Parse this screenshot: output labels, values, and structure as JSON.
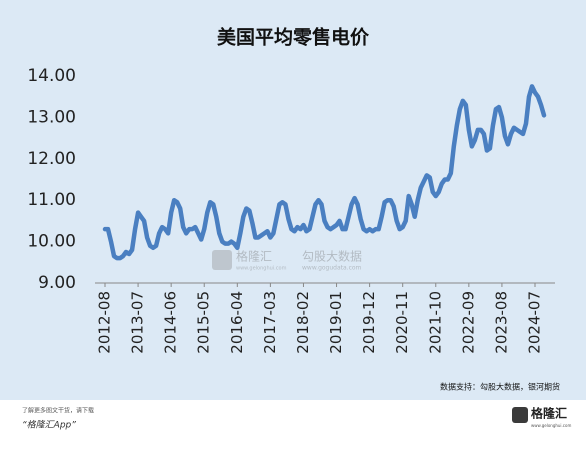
{
  "chart_data": {
    "type": "line",
    "title": "美国平均零售电价",
    "categories": [
      "2012-08",
      null,
      null,
      null,
      null,
      null,
      null,
      null,
      null,
      null,
      null,
      "2013-07",
      null,
      null,
      null,
      null,
      null,
      null,
      null,
      null,
      null,
      null,
      "2014-06",
      null,
      null,
      null,
      null,
      null,
      null,
      null,
      null,
      null,
      null,
      "2015-05",
      null,
      null,
      null,
      null,
      null,
      null,
      null,
      null,
      null,
      null,
      "2016-04",
      null,
      null,
      null,
      null,
      null,
      null,
      null,
      null,
      null,
      null,
      "2017-03",
      null,
      null,
      null,
      null,
      null,
      null,
      null,
      null,
      null,
      null,
      "2018-02",
      null,
      null,
      null,
      null,
      null,
      null,
      null,
      null,
      null,
      null,
      "2019-01",
      null,
      null,
      null,
      null,
      null,
      null,
      null,
      null,
      null,
      null,
      "2019-12",
      null,
      null,
      null,
      null,
      null,
      null,
      null,
      null,
      null,
      null,
      "2020-11",
      null,
      null,
      null,
      null,
      null,
      null,
      null,
      null,
      null,
      null,
      "2021-10",
      null,
      null,
      null,
      null,
      null,
      null,
      null,
      null,
      null,
      null,
      "2022-09",
      null,
      null,
      null,
      null,
      null,
      null,
      null,
      null,
      null,
      null,
      "2023-08",
      null,
      null,
      null,
      null,
      null,
      null,
      null,
      null,
      null,
      null,
      "2024-07",
      null,
      null,
      null
    ],
    "values": [
      10.3,
      10.3,
      10.0,
      9.65,
      9.6,
      9.6,
      9.65,
      9.75,
      9.7,
      9.8,
      10.3,
      10.7,
      10.6,
      10.5,
      10.1,
      9.9,
      9.85,
      9.9,
      10.2,
      10.35,
      10.3,
      10.2,
      10.7,
      11.0,
      10.95,
      10.8,
      10.35,
      10.2,
      10.3,
      10.3,
      10.35,
      10.2,
      10.05,
      10.3,
      10.7,
      10.95,
      10.9,
      10.6,
      10.2,
      10.0,
      9.95,
      9.95,
      10.0,
      9.95,
      9.85,
      10.2,
      10.6,
      10.8,
      10.75,
      10.45,
      10.1,
      10.1,
      10.15,
      10.2,
      10.25,
      10.1,
      10.2,
      10.55,
      10.9,
      10.95,
      10.9,
      10.55,
      10.3,
      10.25,
      10.35,
      10.3,
      10.4,
      10.25,
      10.3,
      10.6,
      10.9,
      11.0,
      10.9,
      10.5,
      10.35,
      10.3,
      10.35,
      10.4,
      10.5,
      10.3,
      10.3,
      10.6,
      10.9,
      11.05,
      10.9,
      10.55,
      10.3,
      10.25,
      10.3,
      10.25,
      10.3,
      10.3,
      10.6,
      10.95,
      11.0,
      11.0,
      10.85,
      10.5,
      10.3,
      10.35,
      10.5,
      11.1,
      10.9,
      10.6,
      11.0,
      11.3,
      11.45,
      11.6,
      11.55,
      11.2,
      11.1,
      11.2,
      11.4,
      11.5,
      11.5,
      11.65,
      12.3,
      12.8,
      13.2,
      13.4,
      13.3,
      12.7,
      12.3,
      12.45,
      12.7,
      12.7,
      12.6,
      12.2,
      12.25,
      12.8,
      13.2,
      13.25,
      13.0,
      12.55,
      12.35,
      12.6,
      12.75,
      12.7,
      12.65,
      12.6,
      12.85,
      13.5,
      13.75,
      13.6,
      13.5,
      13.3,
      13.05
    ],
    "color": "#4a7fc1",
    "ylim": [
      9,
      14
    ],
    "yticks": [
      {
        "value": 9,
        "label": "9.00"
      },
      {
        "value": 10,
        "label": "10.00"
      },
      {
        "value": 11,
        "label": "11.00"
      },
      {
        "value": 12,
        "label": "12.00"
      },
      {
        "value": 13,
        "label": "13.00"
      },
      {
        "value": 14,
        "label": "14.00"
      }
    ],
    "source": "数据支持：勾股大数据，银河期货"
  },
  "watermark": {
    "brand": "格隆汇",
    "brand_url": "www.gelonghui.com",
    "data": "勾股大数据",
    "data_url": "www.gogudata.com"
  },
  "footer": {
    "line1": "了解更多图文干货，请下载",
    "line2": "“格隆汇App”",
    "logo": "格隆汇",
    "logo_url": "www.gelonghui.com"
  }
}
